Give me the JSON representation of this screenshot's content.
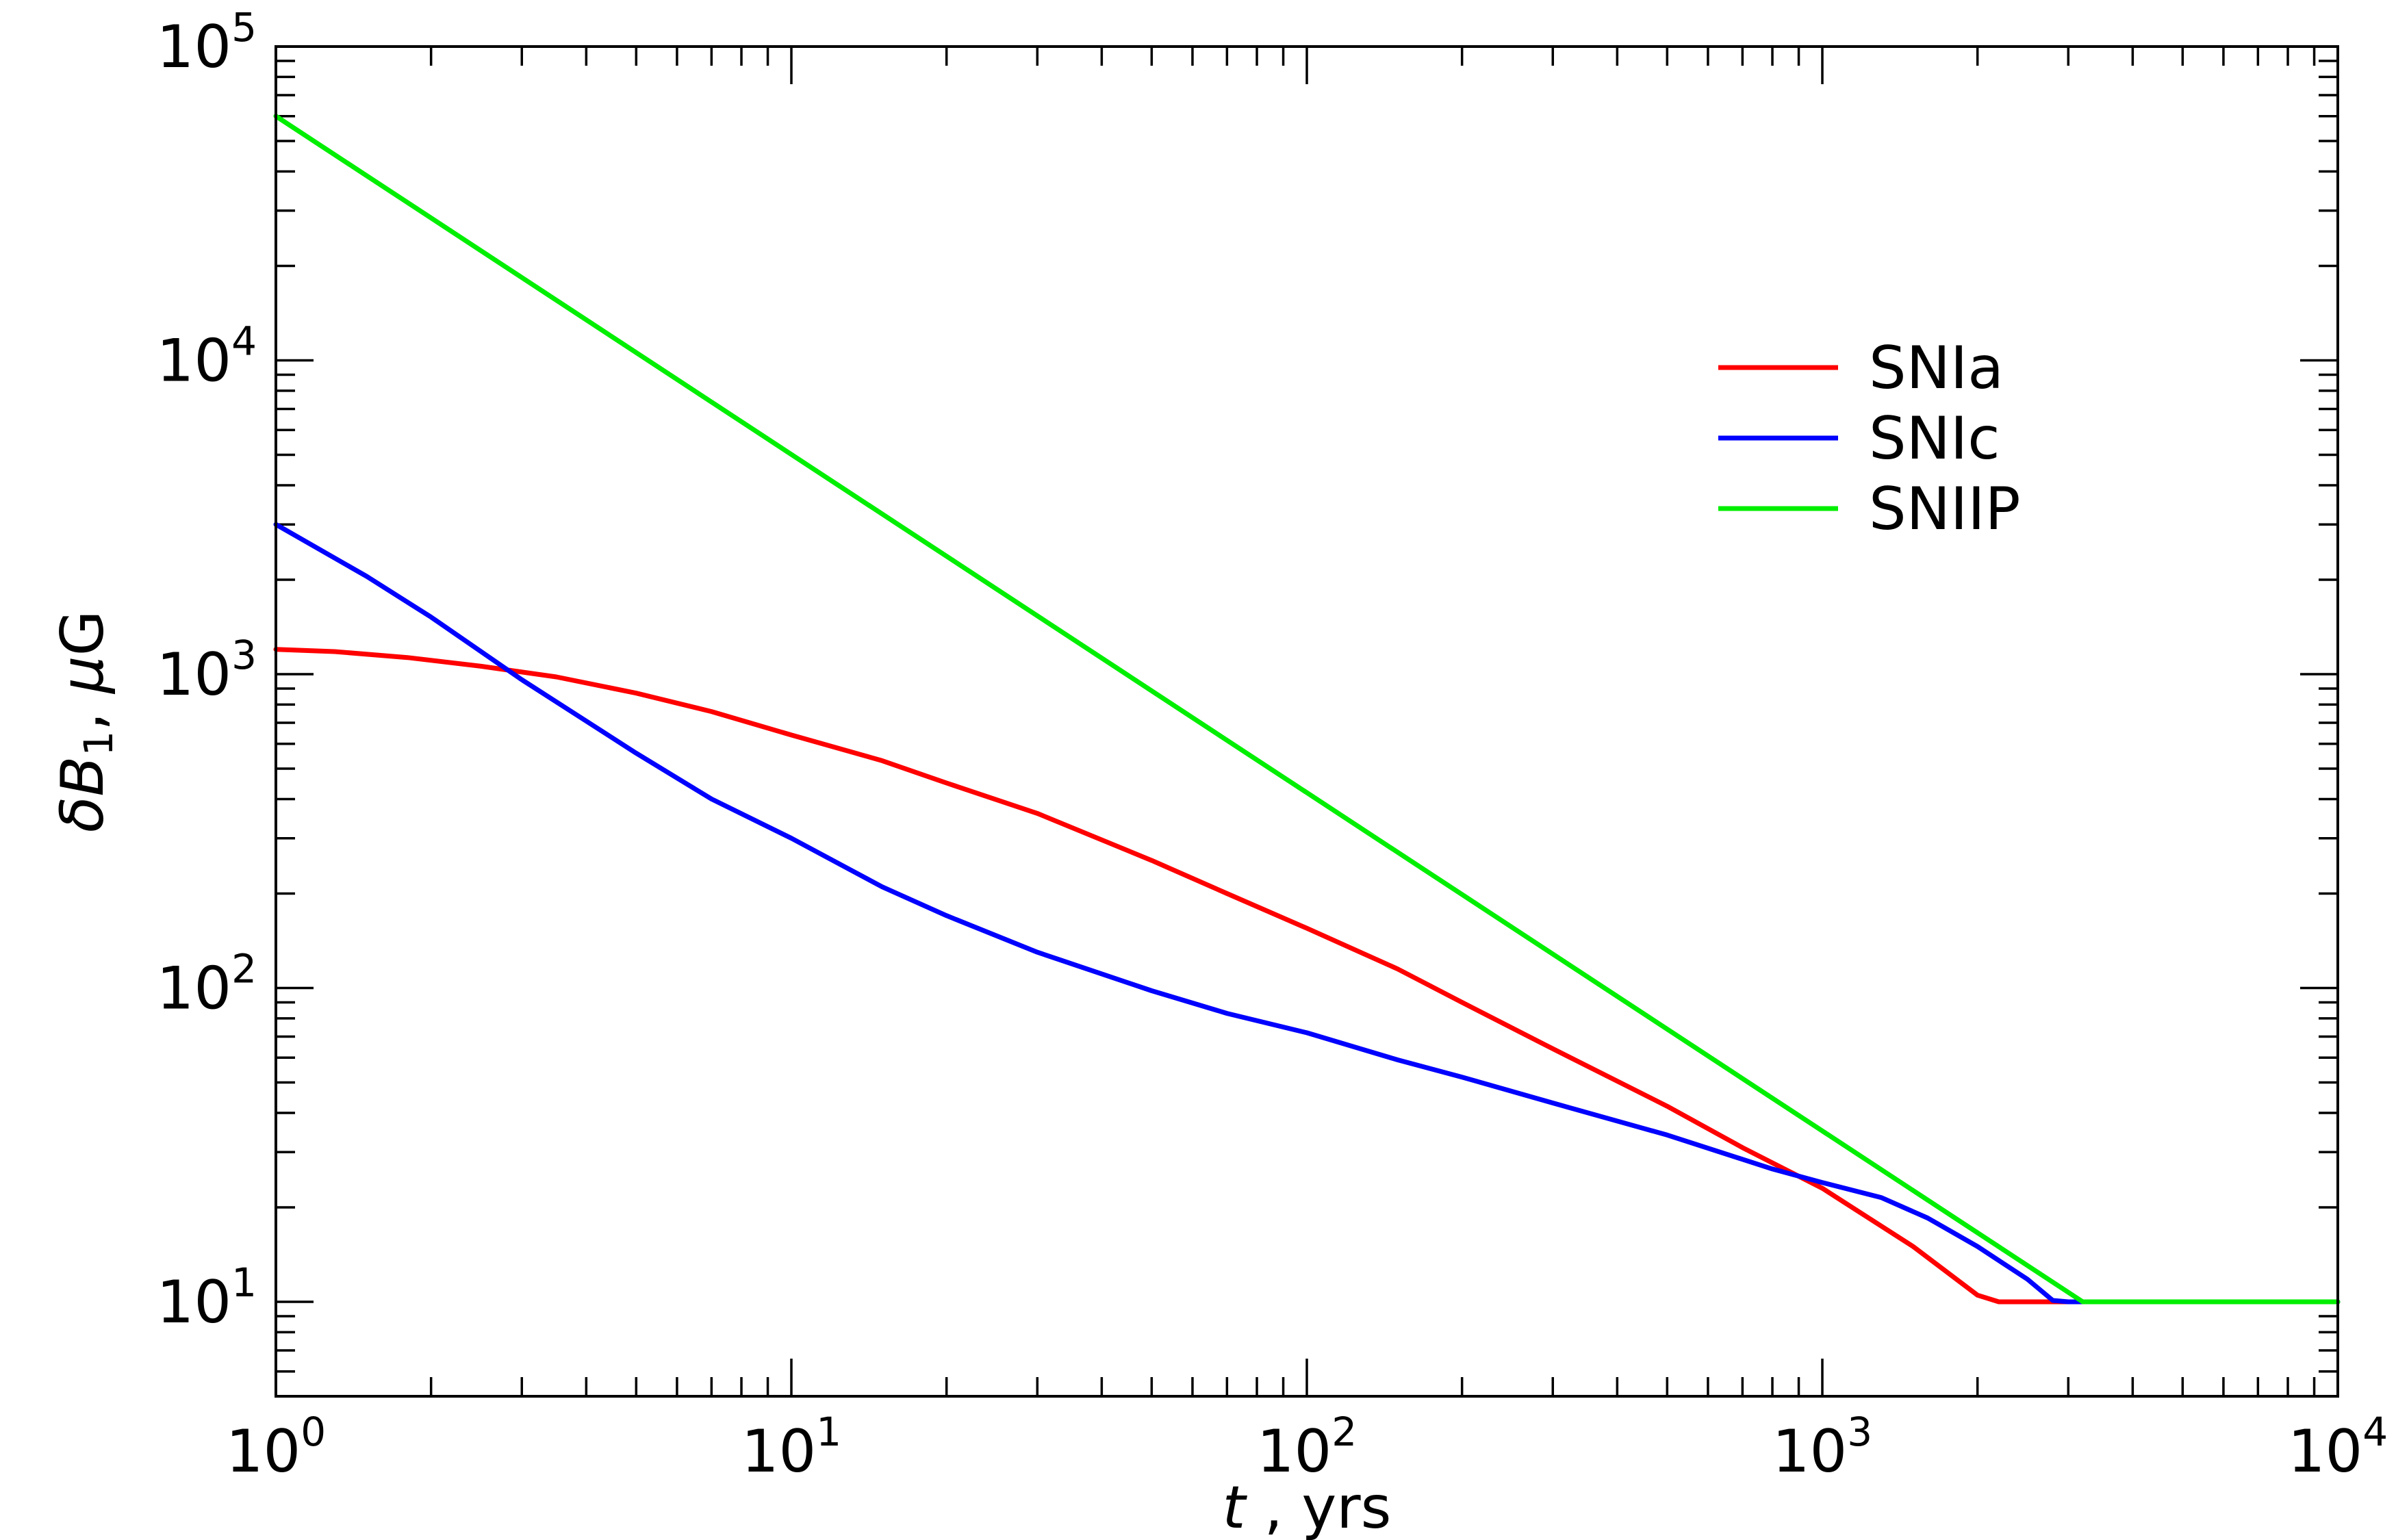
{
  "chart_data": {
    "type": "line",
    "xscale": "log",
    "yscale": "log",
    "xlim": [
      1,
      10000
    ],
    "ylim": [
      5,
      100000
    ],
    "xticks": [
      {
        "base": "10",
        "exp": "0"
      },
      {
        "base": "10",
        "exp": "1"
      },
      {
        "base": "10",
        "exp": "2"
      },
      {
        "base": "10",
        "exp": "3"
      },
      {
        "base": "10",
        "exp": "4"
      }
    ],
    "yticks": [
      {
        "base": "10",
        "exp": "1"
      },
      {
        "base": "10",
        "exp": "2"
      },
      {
        "base": "10",
        "exp": "3"
      },
      {
        "base": "10",
        "exp": "4"
      },
      {
        "base": "10",
        "exp": "5"
      }
    ],
    "xlabel": {
      "var": "t",
      "rest": " , yrs"
    },
    "ylabel": {
      "var": "δB",
      "sub": "1",
      "rest": ", ",
      "mu": "μ",
      "unit": "G"
    },
    "legend_position": "upper-right",
    "grid": false,
    "series": [
      {
        "name": "SNIa",
        "color": "#ff0000",
        "x": [
          1,
          1.3,
          1.8,
          2.5,
          3.5,
          5,
          7,
          10,
          15,
          20,
          30,
          50,
          70,
          100,
          150,
          200,
          300,
          500,
          700,
          1000,
          1500,
          2000,
          2200,
          3000,
          10000
        ],
        "y": [
          1200,
          1180,
          1130,
          1060,
          980,
          870,
          760,
          640,
          530,
          450,
          360,
          255,
          200,
          155,
          115,
          90,
          64,
          42,
          31,
          23,
          15,
          10.5,
          10,
          10,
          10
        ]
      },
      {
        "name": "SNIc",
        "color": "#0000ff",
        "x": [
          1,
          1.5,
          2,
          3,
          5,
          7,
          10,
          15,
          20,
          30,
          50,
          70,
          100,
          150,
          200,
          300,
          500,
          800,
          1000,
          1300,
          1600,
          2000,
          2500,
          2800,
          3000,
          10000
        ],
        "y": [
          3000,
          2050,
          1520,
          960,
          560,
          400,
          300,
          210,
          170,
          130,
          98,
          83,
          72,
          59,
          52,
          43,
          34,
          26.5,
          24,
          21.5,
          18.5,
          15,
          11.8,
          10.1,
          10,
          10
        ]
      },
      {
        "name": "SNIIP",
        "color": "#00ee00",
        "x": [
          1,
          3200,
          10000
        ],
        "y": [
          60000,
          10,
          10
        ]
      }
    ]
  }
}
